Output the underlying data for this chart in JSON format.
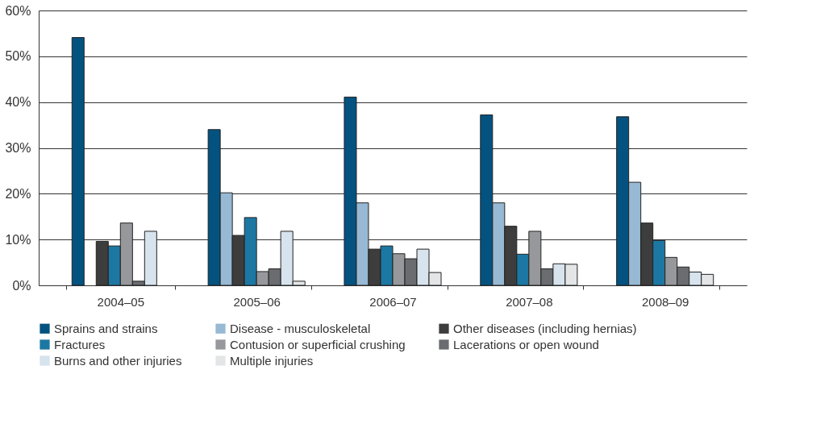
{
  "chart_data": {
    "type": "bar",
    "categories": [
      "2004–05",
      "2005–06",
      "2006–07",
      "2007–08",
      "2008–09"
    ],
    "series": [
      {
        "name": "Sprains and strains",
        "color": "#045280",
        "values": [
          54.1,
          34.0,
          41.1,
          37.2,
          36.8
        ]
      },
      {
        "name": "Disease - musculoskeletal",
        "color": "#97b9d4",
        "values": [
          null,
          20.2,
          18.0,
          18.0,
          22.5
        ]
      },
      {
        "name": "Other diseases (including hernias)",
        "color": "#3d3d3d",
        "values": [
          9.6,
          10.9,
          7.9,
          12.9,
          13.6
        ]
      },
      {
        "name": "Fractures",
        "color": "#1c78a3",
        "values": [
          8.6,
          14.8,
          8.6,
          6.8,
          9.8
        ]
      },
      {
        "name": "Contusion or superficial crushing",
        "color": "#97989b",
        "values": [
          13.6,
          3.0,
          6.9,
          11.8,
          6.1
        ]
      },
      {
        "name": "Lacerations or open wound",
        "color": "#6b6c70",
        "values": [
          0.9,
          3.6,
          5.8,
          3.6,
          4.0
        ]
      },
      {
        "name": "Burns and other injuries",
        "color": "#d7e3ed",
        "values": [
          11.8,
          11.8,
          7.9,
          4.7,
          2.9
        ]
      },
      {
        "name": "Multiple injuries",
        "color": "#e4e5e6",
        "values": [
          null,
          0.9,
          2.8,
          4.6,
          2.4
        ]
      }
    ],
    "ylim": [
      0,
      60
    ],
    "yticks": [
      {
        "value": 0,
        "label": "0%"
      },
      {
        "value": 10,
        "label": "10%"
      },
      {
        "value": 20,
        "label": "20%"
      },
      {
        "value": 30,
        "label": "30%"
      },
      {
        "value": 40,
        "label": "40%"
      },
      {
        "value": 50,
        "label": "50%"
      },
      {
        "value": 60,
        "label": "60%"
      }
    ],
    "grid": "y",
    "legend": "bottom"
  }
}
